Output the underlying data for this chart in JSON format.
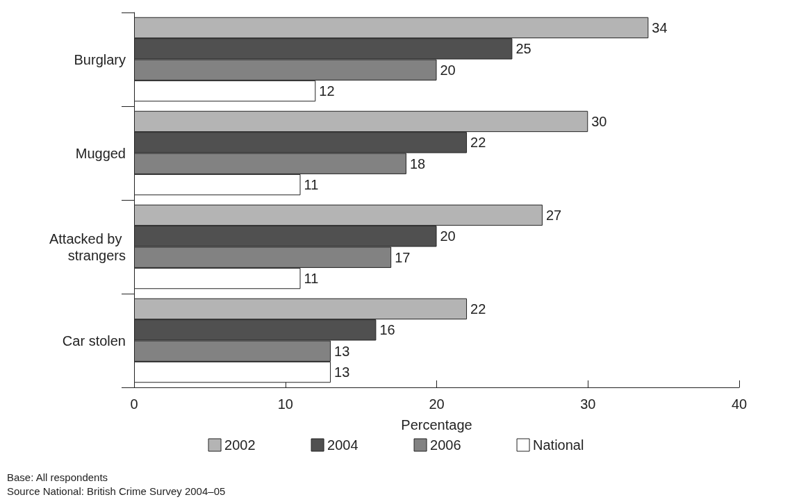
{
  "chart_data": {
    "type": "bar",
    "orientation": "horizontal",
    "xlabel": "Percentage",
    "categories": [
      "Burglary",
      "Mugged",
      "Attacked by strangers",
      "Car stolen"
    ],
    "series": [
      {
        "name": "2002",
        "color": "#b4b4b4",
        "values": [
          34,
          30,
          27,
          22
        ]
      },
      {
        "name": "2004",
        "color": "#505050",
        "values": [
          25,
          22,
          20,
          16
        ]
      },
      {
        "name": "2006",
        "color": "#828282",
        "values": [
          20,
          18,
          17,
          13
        ]
      },
      {
        "name": "National",
        "color": "#ffffff",
        "values": [
          12,
          11,
          11,
          13
        ]
      }
    ],
    "xlim": [
      0,
      40
    ],
    "xticks": [
      0,
      10,
      20,
      30,
      40
    ],
    "grid": false,
    "legend": "bottom",
    "data_labels": true,
    "annotations": [
      "Base: All respondents",
      "Source National: British Crime Survey 2004–05"
    ]
  }
}
